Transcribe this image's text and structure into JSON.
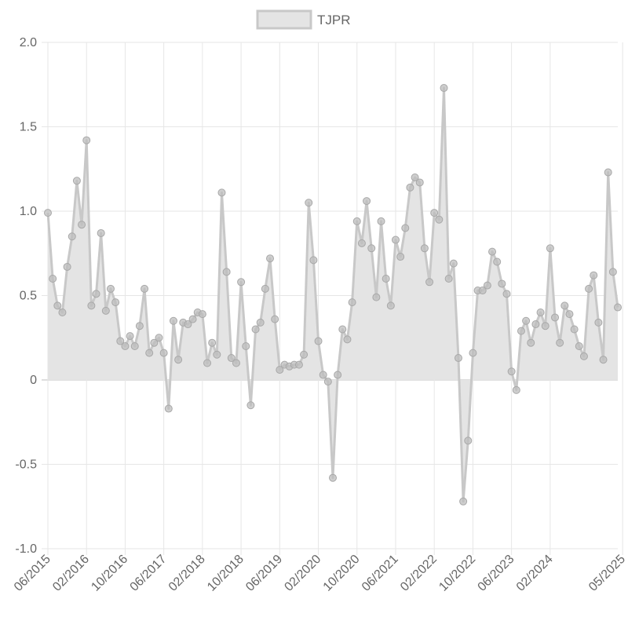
{
  "chart_data": {
    "type": "area",
    "legend": {
      "label": "TJPR",
      "position": "top-center"
    },
    "ylim": [
      -1.0,
      2.0
    ],
    "yticks": [
      "2.0",
      "1.5",
      "1.0",
      "0.5",
      "0",
      "-0.5",
      "-1.0"
    ],
    "xticks": [
      "06/2015",
      "02/2016",
      "10/2016",
      "06/2017",
      "02/2018",
      "10/2018",
      "06/2019",
      "02/2020",
      "10/2020",
      "06/2021",
      "02/2022",
      "10/2022",
      "06/2023",
      "02/2024",
      "05/2025"
    ],
    "grid": true,
    "colors": {
      "fill": "#e4e4e4",
      "line": "#c8c8c8",
      "point": "#bdbdbd",
      "grid": "#e6e6e6",
      "zero": "#bdbdbd"
    },
    "series": [
      {
        "name": "TJPR",
        "start": "06/2015",
        "frequency": "monthly",
        "values": [
          0.99,
          0.6,
          0.44,
          0.4,
          0.67,
          0.85,
          1.18,
          0.92,
          1.42,
          0.44,
          0.51,
          0.87,
          0.41,
          0.54,
          0.46,
          0.23,
          0.2,
          0.26,
          0.2,
          0.32,
          0.54,
          0.16,
          0.22,
          0.25,
          0.16,
          -0.17,
          0.35,
          0.12,
          0.34,
          0.33,
          0.36,
          0.4,
          0.39,
          0.1,
          0.22,
          0.15,
          1.11,
          0.64,
          0.13,
          0.1,
          0.58,
          0.2,
          -0.15,
          0.3,
          0.34,
          0.54,
          0.72,
          0.36,
          0.06,
          0.09,
          0.08,
          0.09,
          0.09,
          0.15,
          1.05,
          0.71,
          0.23,
          0.03,
          -0.01,
          -0.58,
          0.03,
          0.3,
          0.24,
          0.46,
          0.94,
          0.81,
          1.06,
          0.78,
          0.49,
          0.94,
          0.6,
          0.44,
          0.83,
          0.73,
          0.9,
          1.14,
          1.2,
          1.17,
          0.78,
          0.58,
          0.99,
          0.95,
          1.73,
          0.6,
          0.69,
          0.13,
          -0.72,
          -0.36,
          0.16,
          0.53,
          0.53,
          0.56,
          0.76,
          0.7,
          0.57,
          0.51,
          0.05,
          -0.06,
          0.29,
          0.35,
          0.22,
          0.33,
          0.4,
          0.32,
          0.78,
          0.37,
          0.22,
          0.44,
          0.39,
          0.3,
          0.2,
          0.14,
          0.54,
          0.62,
          0.34,
          0.12,
          1.23,
          0.64,
          0.43
        ]
      }
    ]
  }
}
